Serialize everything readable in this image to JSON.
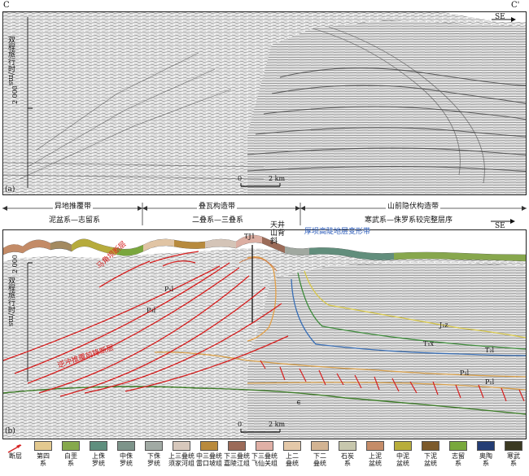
{
  "panel_a": {
    "corner_left": "C",
    "corner_right": "C'",
    "direction": "SE",
    "ylabel": "双程旅行时/ms",
    "ytick": "2 000",
    "scale_zero": "0",
    "scale_len": "2 km",
    "tag": "(a)"
  },
  "panel_b": {
    "zones": [
      {
        "title": "异地推覆带",
        "sub": "泥盆系—志留系"
      },
      {
        "title": "叠瓦构造带",
        "sub": "二叠系—三叠系"
      },
      {
        "title": "山前隐伏构造带",
        "sub": "寒武系—侏罗系较完整层序"
      }
    ],
    "direction": "SE",
    "anticline": "天井山背斜",
    "well": "TJ1",
    "blue_zone": "厚坝高陡地层变形带",
    "thrust_label": "逆冲推覆前锋断层",
    "fault_label_2": "马角坝断层",
    "ylabel": "双程旅行时/ms",
    "ytick": "2 000",
    "horizon_labels": [
      "P₁l",
      "P₃l",
      "J₁z",
      "T₁x",
      "T₂l",
      "P₃l",
      "P₁l",
      "∈"
    ],
    "scale_zero": "0",
    "scale_len": "2 km",
    "tag": "(b)"
  },
  "legend": [
    {
      "label": "断层",
      "color": "#ffffff",
      "icon": "fault-line-icon"
    },
    {
      "label": "第四系",
      "color": "#e3c98f"
    },
    {
      "label": "白垩系",
      "color": "#86a94c"
    },
    {
      "label": "上侏罗统",
      "color": "#5f8f7e"
    },
    {
      "label": "中侏罗统",
      "color": "#7d948a"
    },
    {
      "label": "下侏罗统",
      "color": "#a1aaa4"
    },
    {
      "label": "上三叠统须家河组",
      "color": "#d7c8bc"
    },
    {
      "label": "中三叠统雷口坡组",
      "color": "#b98a3c"
    },
    {
      "label": "下三叠统嘉陵江组",
      "color": "#9b6a58"
    },
    {
      "label": "下三叠统飞仙关组",
      "color": "#e0b0a6"
    },
    {
      "label": "上二叠统",
      "color": "#e4c8a8"
    },
    {
      "label": "下二叠统",
      "color": "#d2b392"
    },
    {
      "label": "石炭系",
      "color": "#c7c7ad"
    },
    {
      "label": "上泥盆统",
      "color": "#c58c68"
    },
    {
      "label": "中泥盆统",
      "color": "#b8ad3b"
    },
    {
      "label": "下泥盆统",
      "color": "#7c5a2b"
    },
    {
      "label": "志留系",
      "color": "#78a83c"
    },
    {
      "label": "奥陶系",
      "color": "#243d75"
    },
    {
      "label": "寒武系",
      "color": "#3b3a22"
    }
  ]
}
